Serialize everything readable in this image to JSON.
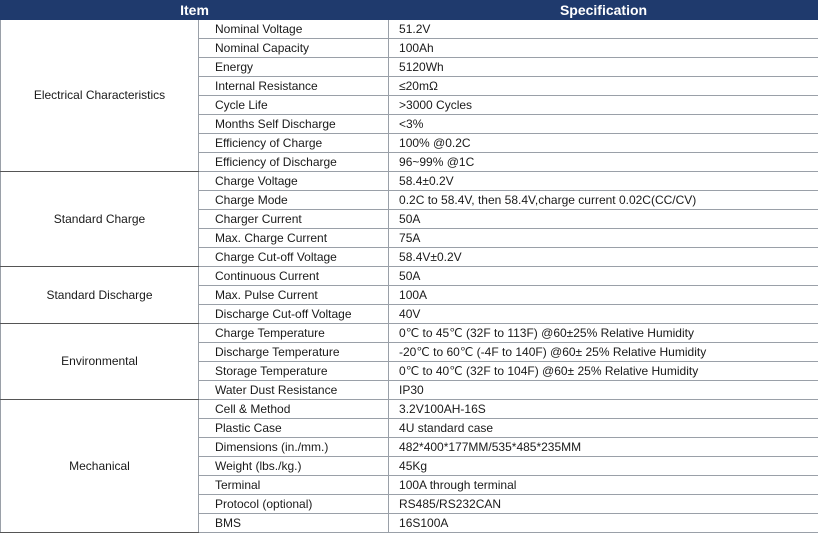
{
  "header": {
    "item": "Item",
    "specification": "Specification"
  },
  "groups": [
    {
      "name": "Electrical Characteristics",
      "rows": [
        [
          "Nominal Voltage",
          "51.2V"
        ],
        [
          "Nominal Capacity",
          "100Ah"
        ],
        [
          "Energy",
          "5120Wh"
        ],
        [
          "Internal Resistance",
          "≤20mΩ"
        ],
        [
          "Cycle Life",
          ">3000 Cycles"
        ],
        [
          "Months Self Discharge",
          "<3%"
        ],
        [
          "Efficiency of Charge",
          "100% @0.2C"
        ],
        [
          "Efficiency of Discharge",
          "96~99% @1C"
        ]
      ]
    },
    {
      "name": "Standard Charge",
      "rows": [
        [
          "Charge Voltage",
          "58.4±0.2V"
        ],
        [
          "Charge Mode",
          "0.2C to 58.4V, then 58.4V,charge current 0.02C(CC/CV)"
        ],
        [
          "Charger Current",
          "50A"
        ],
        [
          "Max. Charge Current",
          "75A"
        ],
        [
          "Charge Cut-off Voltage",
          "58.4V±0.2V"
        ]
      ]
    },
    {
      "name": "Standard Discharge",
      "rows": [
        [
          "Continuous Current",
          "50A"
        ],
        [
          "Max. Pulse Current",
          "100A"
        ],
        [
          "Discharge Cut-off Voltage",
          "40V"
        ]
      ]
    },
    {
      "name": "Environmental",
      "rows": [
        [
          "Charge Temperature",
          "0℃ to 45℃ (32F to 113F) @60±25% Relative Humidity"
        ],
        [
          "Discharge Temperature",
          "-20℃ to 60℃ (-4F to 140F) @60± 25% Relative Humidity"
        ],
        [
          "Storage Temperature",
          "0℃ to 40℃ (32F to 104F) @60± 25% Relative Humidity"
        ],
        [
          "Water Dust Resistance",
          "IP30"
        ]
      ]
    },
    {
      "name": "Mechanical",
      "rows": [
        [
          "Cell & Method",
          "3.2V100AH-16S"
        ],
        [
          "Plastic Case",
          "4U standard case"
        ],
        [
          "Dimensions (in./mm.)",
          "482*400*177MM/535*485*235MM"
        ],
        [
          "Weight (lbs./kg.)",
          "45Kg"
        ],
        [
          "Terminal",
          "100A through terminal"
        ],
        [
          "Protocol (optional)",
          "RS485/RS232CAN"
        ],
        [
          "BMS",
          "16S100A"
        ]
      ]
    }
  ]
}
